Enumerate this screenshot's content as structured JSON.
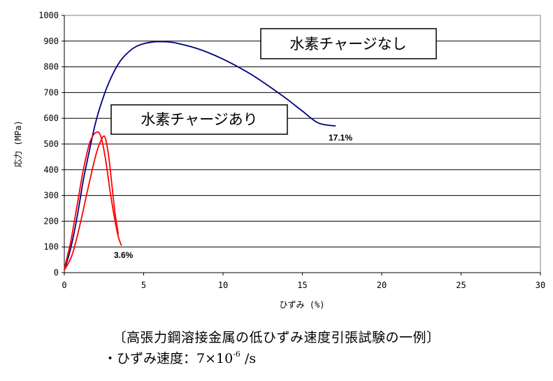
{
  "chart_data": {
    "type": "line",
    "xlabel": "ひずみ (%)",
    "ylabel": "応力 (MPa)",
    "xlim": [
      0,
      30
    ],
    "ylim": [
      0,
      1000
    ],
    "xticks": [
      "0",
      "5",
      "10",
      "15",
      "20",
      "25",
      "30"
    ],
    "yticks": [
      "0",
      "100",
      "200",
      "300",
      "400",
      "500",
      "600",
      "700",
      "800",
      "900",
      "1000"
    ],
    "grid": "horizontal",
    "annotations": {
      "no_charge_box": "水素チャージなし",
      "charged_box": "水素チャージあり",
      "no_charge_end": "17.1%",
      "charged_end": "3.6%"
    },
    "series": [
      {
        "color": "#000080",
        "x": [
          0,
          0.3,
          0.6,
          0.9,
          1.2,
          1.6,
          2.0,
          2.5,
          3.0,
          3.5,
          4.0,
          4.5,
          5.0,
          5.5,
          6.0,
          6.5,
          7.0,
          8.0,
          9.0,
          10.0,
          11.0,
          12.0,
          13.0,
          14.0,
          15.0,
          16.0,
          17.1
        ],
        "y": [
          10,
          70,
          150,
          250,
          360,
          480,
          590,
          690,
          765,
          820,
          855,
          878,
          890,
          896,
          898,
          897,
          893,
          878,
          857,
          830,
          798,
          762,
          720,
          676,
          628,
          582,
          570
        ]
      },
      {
        "color": "#ff0000",
        "x": [
          0,
          0.4,
          0.8,
          1.2,
          1.6,
          2.0,
          2.3,
          2.6,
          2.9,
          3.2,
          3.4,
          3.6
        ],
        "y": [
          15,
          120,
          260,
          400,
          505,
          545,
          530,
          440,
          310,
          200,
          140,
          105
        ]
      },
      {
        "color": "#ff0000",
        "x": [
          0,
          0.5,
          1.0,
          1.5,
          2.0,
          2.4,
          2.6,
          2.8,
          3.0,
          3.2,
          3.4
        ],
        "y": [
          10,
          70,
          190,
          330,
          460,
          525,
          520,
          450,
          340,
          230,
          150
        ]
      }
    ]
  },
  "caption": {
    "title": "〔高張力鋼溶接金属の低ひずみ速度引張試験の一例〕",
    "rate_prefix": "・ひずみ速度：7×10",
    "rate_exponent": "-6",
    "rate_suffix": " /s"
  }
}
